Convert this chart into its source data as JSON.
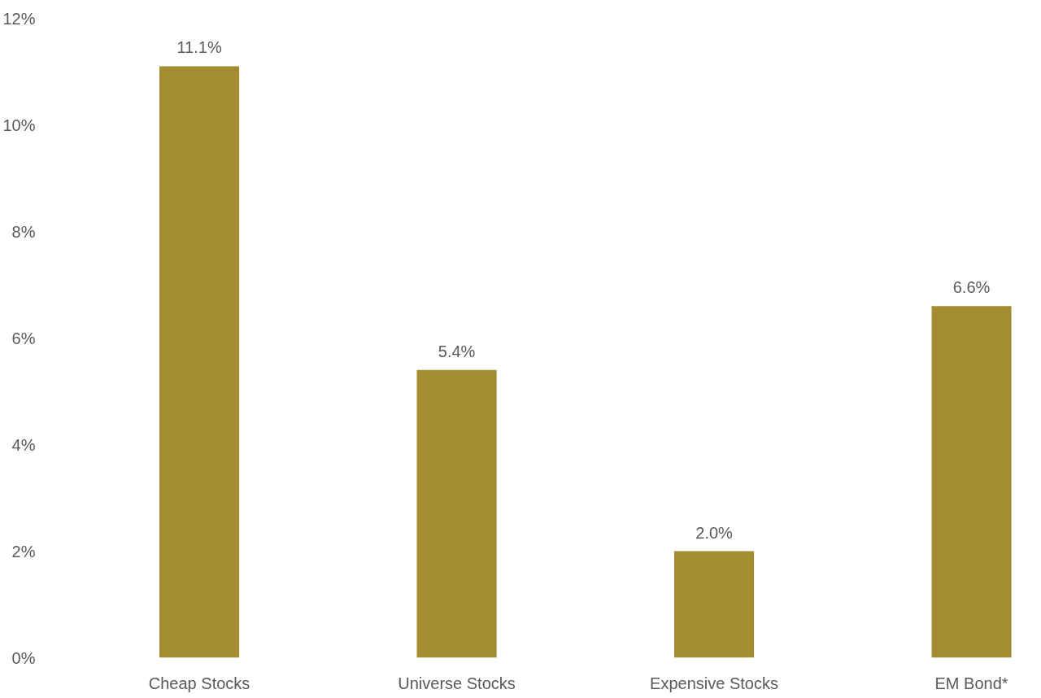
{
  "chart_data": {
    "type": "bar",
    "categories": [
      "Cheap Stocks",
      "Universe Stocks",
      "Expensive Stocks",
      "EM Bond*"
    ],
    "values": [
      11.1,
      5.4,
      2.0,
      6.6
    ],
    "color": "#a38c32",
    "value_labels": [
      "11.1%",
      "5.4%",
      "2.0%",
      "6.6%"
    ],
    "ylim": [
      0,
      12
    ],
    "yticks": [
      {
        "value": 0,
        "label": "0%"
      },
      {
        "value": 2,
        "label": "2%"
      },
      {
        "value": 4,
        "label": "4%"
      },
      {
        "value": 6,
        "label": "6%"
      },
      {
        "value": 8,
        "label": "8%"
      },
      {
        "value": 10,
        "label": "10%"
      },
      {
        "value": 12,
        "label": "12%"
      }
    ],
    "grid": false
  }
}
